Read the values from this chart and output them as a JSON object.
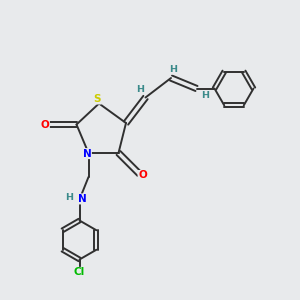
{
  "bg_color": "#e8eaec",
  "atom_colors": {
    "S": "#cccc00",
    "N": "#0000ff",
    "O": "#ff0000",
    "Cl": "#00bb00",
    "C": "#303030",
    "H": "#3a8a8a"
  },
  "bond_color": "#303030",
  "lw": 1.4
}
